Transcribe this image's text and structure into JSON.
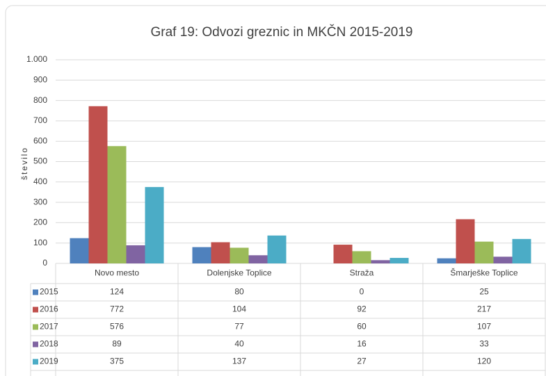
{
  "chart_data": {
    "type": "bar",
    "title": "Graf 19: Odvozi greznic in MKČN 2015-2019",
    "y_label": "število",
    "categories": [
      "Novo mesto",
      "Dolenjske Toplice",
      "Straža",
      "Šmarješke Toplice"
    ],
    "series": [
      {
        "name": "2015",
        "color": "#4f81bd",
        "values": [
          124,
          80,
          0,
          25
        ]
      },
      {
        "name": "2016",
        "color": "#c0504d",
        "values": [
          772,
          104,
          92,
          217
        ]
      },
      {
        "name": "2017",
        "color": "#9bbb59",
        "values": [
          576,
          77,
          60,
          107
        ]
      },
      {
        "name": "2018",
        "color": "#8064a2",
        "values": [
          89,
          40,
          16,
          33
        ]
      },
      {
        "name": "2019",
        "color": "#4bacc6",
        "values": [
          375,
          137,
          27,
          120
        ]
      }
    ],
    "ylim": [
      0,
      1000
    ],
    "yticks": [
      0,
      100,
      200,
      300,
      400,
      500,
      600,
      700,
      800,
      900,
      {
        "value": 1000,
        "label": "1.000"
      }
    ],
    "grid": true,
    "data_table": true
  }
}
